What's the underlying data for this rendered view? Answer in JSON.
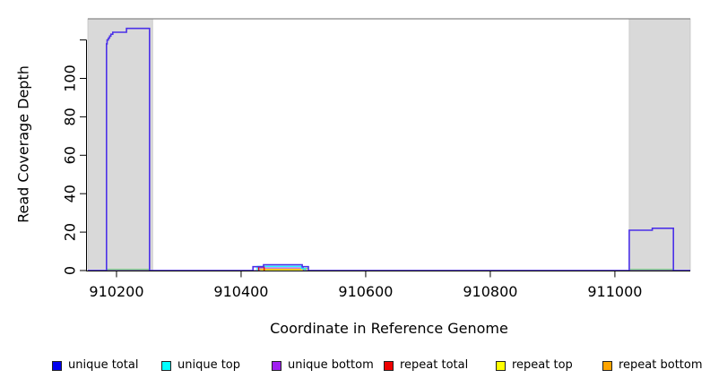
{
  "chart_data": {
    "type": "line",
    "step": true,
    "title": "",
    "xlabel": "Coordinate in Reference Genome",
    "ylabel": "Read Coverage Depth",
    "xlim": [
      910154,
      911121
    ],
    "ylim": [
      0,
      131
    ],
    "grid": false,
    "xticks": [
      910200,
      910400,
      910600,
      910800,
      911000
    ],
    "yticks": [
      {
        "v": 0,
        "label": "0"
      },
      {
        "v": 20,
        "label": "20"
      },
      {
        "v": 40,
        "label": "40"
      },
      {
        "v": 60,
        "label": "60"
      },
      {
        "v": 80,
        "label": "80"
      },
      {
        "v": 100,
        "label": "100"
      },
      {
        "v": 120,
        "label": ""
      }
    ],
    "shaded_regions": [
      {
        "x0": 910154,
        "x1": 910258,
        "color": "#D9D9D9"
      },
      {
        "x0": 911023,
        "x1": 911121,
        "color": "#D9D9D9"
      }
    ],
    "overlap_segments": {
      "color": "#63CF63",
      "segments": [
        {
          "x0": 910184,
          "x1": 910253,
          "y": 0.5
        },
        {
          "x0": 910497,
          "x1": 910508,
          "y": 1.0
        },
        {
          "x0": 911023,
          "x1": 911094,
          "y": 0.5
        }
      ]
    },
    "series": [
      {
        "name": "repeat top",
        "color": "#FFFF00",
        "points": [
          [
            910432,
            0
          ],
          [
            910505,
            0
          ]
        ]
      },
      {
        "name": "repeat bottom",
        "color": "#FFA500",
        "points": [
          [
            910430,
            0
          ],
          [
            910430,
            0.7
          ],
          [
            910504,
            0.7
          ],
          [
            910504,
            0
          ]
        ]
      },
      {
        "name": "unique bottom",
        "color": "#A020F0",
        "display_color": "#9B5BEE",
        "points": [
          [
            910154,
            0
          ],
          [
            910429,
            0
          ],
          [
            910429,
            1.4
          ],
          [
            910500,
            1.4
          ],
          [
            910500,
            0
          ],
          [
            911121,
            0
          ]
        ]
      },
      {
        "name": "unique top",
        "color": "#00FFFF",
        "points": [
          [
            910426,
            0
          ],
          [
            910426,
            2.2
          ],
          [
            910497,
            2.2
          ],
          [
            910497,
            1
          ],
          [
            910503,
            1
          ],
          [
            910503,
            0
          ]
        ]
      },
      {
        "name": "repeat total",
        "color": "#EE0000",
        "points": [
          [
            910428,
            0
          ],
          [
            910428,
            1.8
          ],
          [
            910437,
            1.8
          ],
          [
            910437,
            0
          ]
        ]
      },
      {
        "name": "unique total",
        "color": "#0000EE",
        "display_color": "#4B31E8",
        "points": [
          [
            910154,
            0
          ],
          [
            910184,
            0
          ],
          [
            910184,
            118
          ],
          [
            910185,
            118
          ],
          [
            910185,
            120
          ],
          [
            910187,
            120
          ],
          [
            910187,
            121
          ],
          [
            910189,
            121
          ],
          [
            910189,
            122
          ],
          [
            910191,
            122
          ],
          [
            910191,
            123
          ],
          [
            910194,
            123
          ],
          [
            910194,
            124
          ],
          [
            910216,
            124
          ],
          [
            910216,
            126
          ],
          [
            910253,
            126
          ],
          [
            910253,
            0
          ],
          [
            910419,
            0
          ],
          [
            910419,
            2
          ],
          [
            910436,
            2
          ],
          [
            910436,
            3
          ],
          [
            910498,
            3
          ],
          [
            910498,
            2
          ],
          [
            910508,
            2
          ],
          [
            910508,
            0
          ],
          [
            911023,
            0
          ],
          [
            911023,
            21
          ],
          [
            911060,
            21
          ],
          [
            911060,
            22
          ],
          [
            911094,
            22
          ],
          [
            911094,
            0
          ],
          [
            911121,
            0
          ]
        ]
      }
    ],
    "legend": [
      {
        "label": "unique total",
        "color": "#0000EE"
      },
      {
        "label": "unique top",
        "color": "#00FFFF"
      },
      {
        "label": "unique bottom",
        "color": "#A020F0"
      },
      {
        "label": "repeat total",
        "color": "#EE0000"
      },
      {
        "label": "repeat top",
        "color": "#FFFF00"
      },
      {
        "label": "repeat bottom",
        "color": "#FFA500"
      }
    ]
  }
}
